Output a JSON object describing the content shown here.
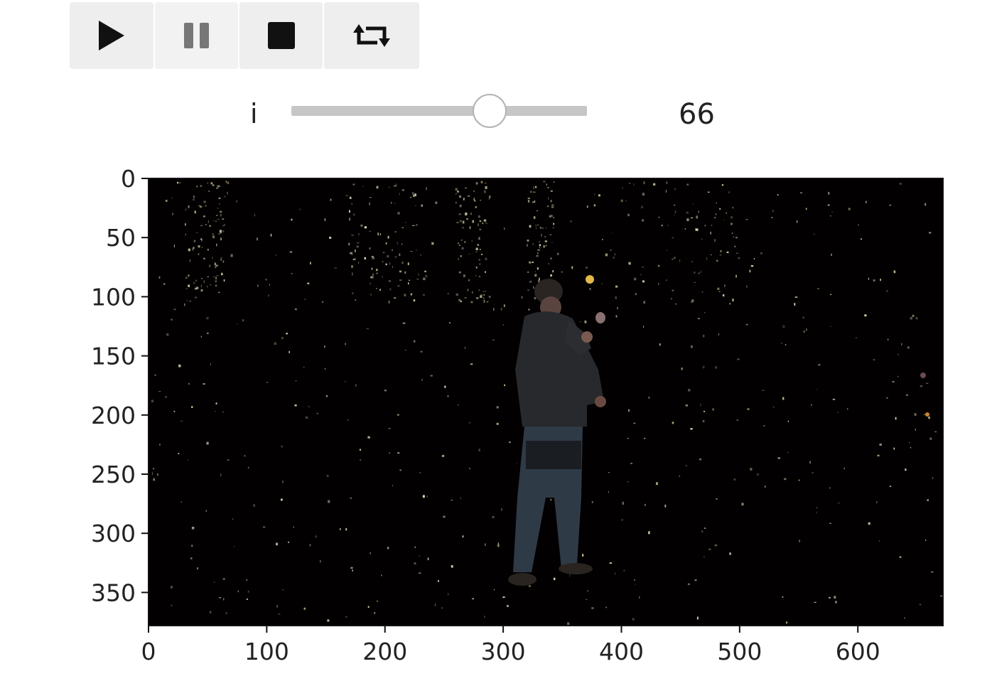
{
  "controls": {
    "play": {
      "icon": "play-icon"
    },
    "pause": {
      "icon": "pause-icon"
    },
    "stop": {
      "icon": "stop-icon"
    },
    "loop": {
      "icon": "loop-icon"
    }
  },
  "slider": {
    "label": "i",
    "value": "66",
    "min": 0,
    "max": 100,
    "fraction": 0.67
  },
  "chart_data": {
    "type": "image",
    "x_ticks": [
      "0",
      "100",
      "200",
      "300",
      "400",
      "500",
      "600"
    ],
    "y_ticks": [
      "0",
      "50",
      "100",
      "150",
      "200",
      "250",
      "300",
      "350"
    ],
    "xlim": [
      0,
      672
    ],
    "ylim": [
      378,
      0
    ],
    "description_colors": {
      "background": "#000000",
      "sparkle": "#d8cfa8"
    }
  }
}
